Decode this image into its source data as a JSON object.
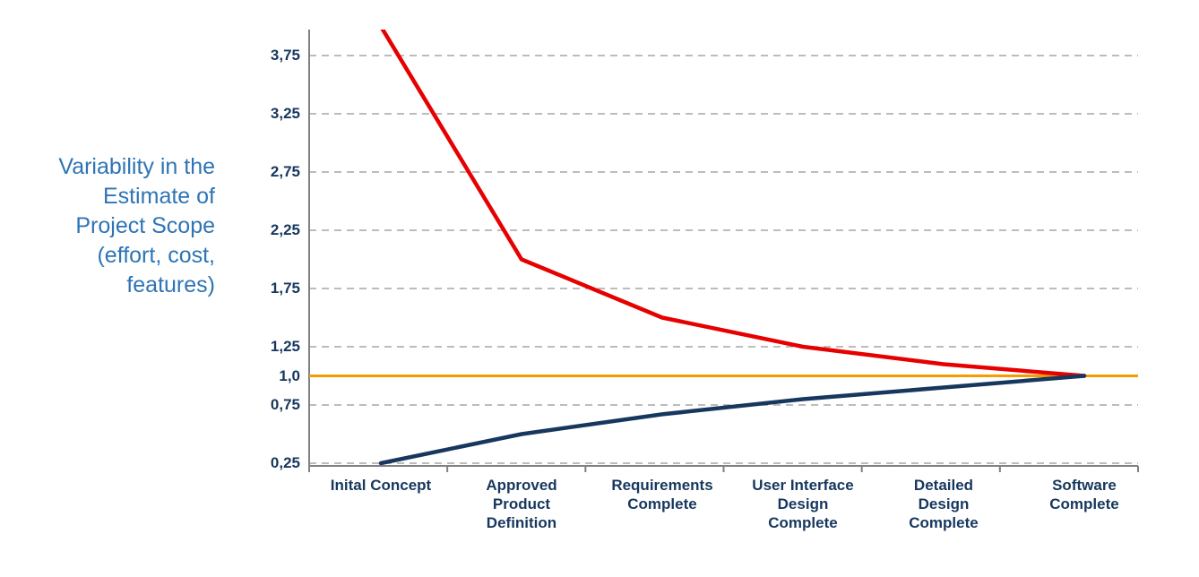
{
  "chart_data": {
    "type": "line",
    "title": "",
    "ylabel": "Variability in the\nEstimate of\nProject Scope\n(effort, cost,\nfeatures)",
    "xlabel": "",
    "categories": [
      "Inital Concept",
      "Approved Product Definition",
      "Requirements Complete",
      "User Interface Design Complete",
      "Detailed Design Complete",
      "Software Complete"
    ],
    "x_tick_labels": [
      "Inital Concept",
      "Approved\nProduct\nDefinition",
      "Requirements\nComplete",
      "User Interface\nDesign\nComplete",
      "Detailed\nDesign\nComplete",
      "Software\nComplete"
    ],
    "y_ticks": [
      {
        "label": "3,75",
        "value": 3.75
      },
      {
        "label": "3,25",
        "value": 3.25
      },
      {
        "label": "2,75",
        "value": 2.75
      },
      {
        "label": "2,25",
        "value": 2.25
      },
      {
        "label": "1,75",
        "value": 1.75
      },
      {
        "label": "1,25",
        "value": 1.25
      },
      {
        "label": "1,0",
        "value": 1.0
      },
      {
        "label": "0,75",
        "value": 0.75
      },
      {
        "label": "0,25",
        "value": 0.25
      }
    ],
    "ylim": [
      0.25,
      4.0
    ],
    "grid": true,
    "grid_style": "dashed",
    "legend": "none",
    "colors": {
      "upper": "#e60000",
      "baseline": "#f59c00",
      "lower": "#17375e",
      "grid": "#a6a6a6",
      "axis": "#808080",
      "tick_text": "#17375e",
      "ylabel_text": "#2e74b5"
    },
    "series": [
      {
        "name": "upper-estimate",
        "color_key": "upper",
        "values": [
          4.0,
          2.0,
          1.5,
          1.25,
          1.1,
          1.0
        ],
        "width": 4.5,
        "full_width": false
      },
      {
        "name": "final-estimate-baseline",
        "color_key": "baseline",
        "values": [
          1.0,
          1.0,
          1.0,
          1.0,
          1.0,
          1.0
        ],
        "width": 3,
        "full_width": true
      },
      {
        "name": "lower-estimate",
        "color_key": "lower",
        "values": [
          0.25,
          0.5,
          0.67,
          0.8,
          0.9,
          1.0
        ],
        "width": 4.5,
        "full_width": false
      }
    ]
  }
}
